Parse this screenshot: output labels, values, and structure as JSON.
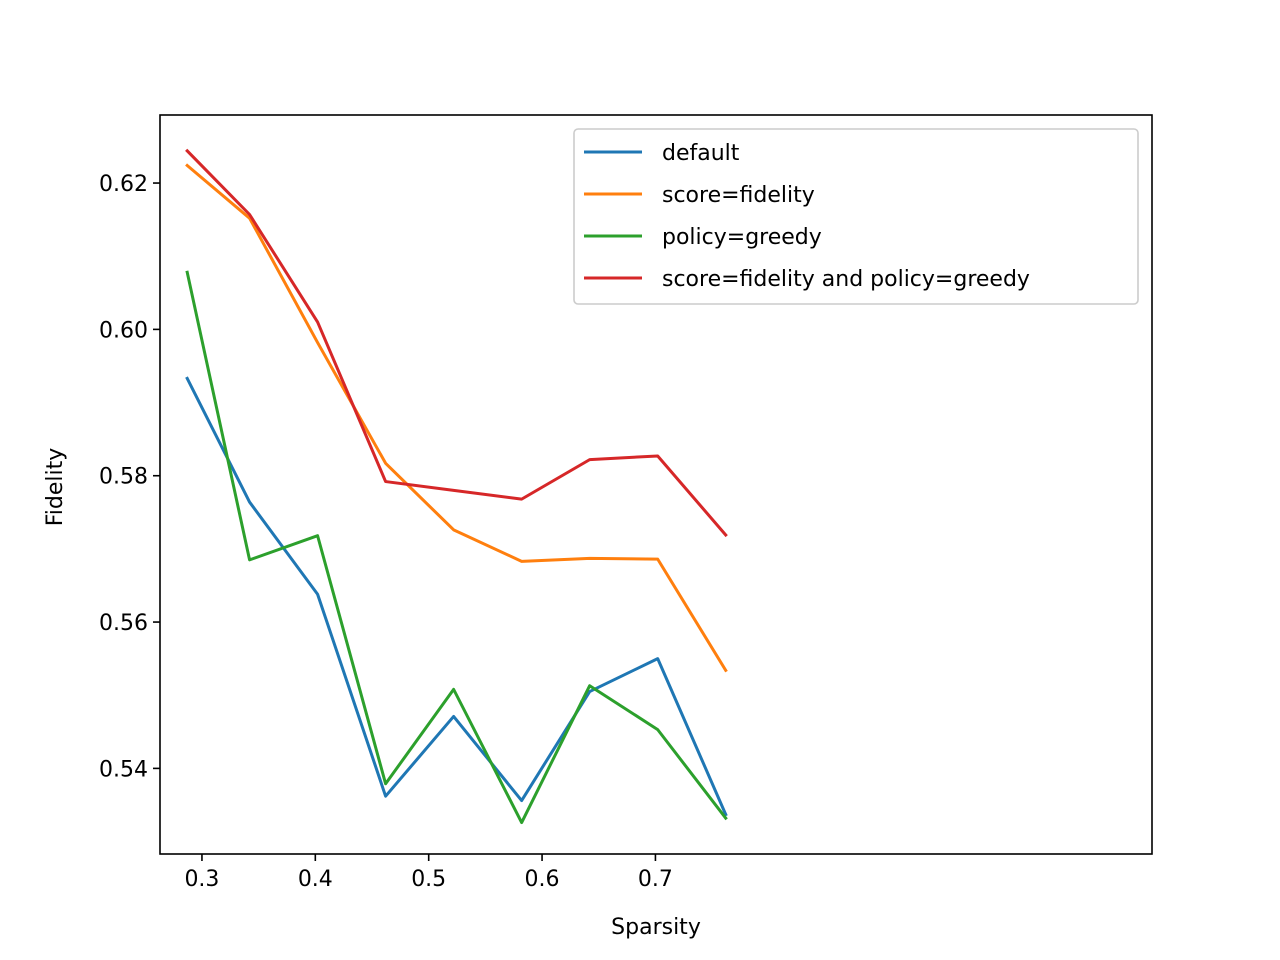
{
  "chart_data": {
    "type": "line",
    "title": "",
    "xlabel": "Sparsity",
    "ylabel": "Fidelity",
    "xlim": [
      0.263,
      1.138
    ],
    "ylim": [
      0.5283,
      0.6293
    ],
    "xticks": [
      0.3,
      0.4,
      0.5,
      0.6,
      0.7
    ],
    "xtick_labels": [
      "0.3",
      "0.4",
      "0.5",
      "0.6",
      "0.7"
    ],
    "yticks": [
      0.54,
      0.56,
      0.58,
      0.6,
      0.62
    ],
    "ytick_labels": [
      "0.54",
      "0.56",
      "0.58",
      "0.60",
      "0.62"
    ],
    "grid": false,
    "legend_position": "upper-right",
    "x": [
      0.287,
      0.342,
      0.402,
      0.462,
      0.522,
      0.582,
      0.642,
      0.702,
      0.762
    ],
    "series": [
      {
        "name": "default",
        "color": "#1f77b4",
        "values": [
          0.5933,
          0.5764,
          0.5638,
          0.5362,
          0.5471,
          0.5356,
          0.5505,
          0.555,
          0.5337
        ]
      },
      {
        "name": "score=fidelity",
        "color": "#ff7f0e",
        "values": [
          0.6224,
          0.6152,
          0.5982,
          0.5817,
          0.5726,
          0.5683,
          0.5687,
          0.5686,
          0.5534
        ]
      },
      {
        "name": "policy=greedy",
        "color": "#2ca02c",
        "values": [
          0.6078,
          0.5685,
          0.5718,
          0.5379,
          0.5508,
          0.5326,
          0.5513,
          0.5453,
          0.5332
        ]
      },
      {
        "name": "score=fidelity and policy=greedy",
        "color": "#d62728",
        "values": [
          0.6244,
          0.6157,
          0.601,
          0.5792,
          0.578,
          0.5768,
          0.5822,
          0.5827,
          0.5719
        ]
      }
    ]
  }
}
